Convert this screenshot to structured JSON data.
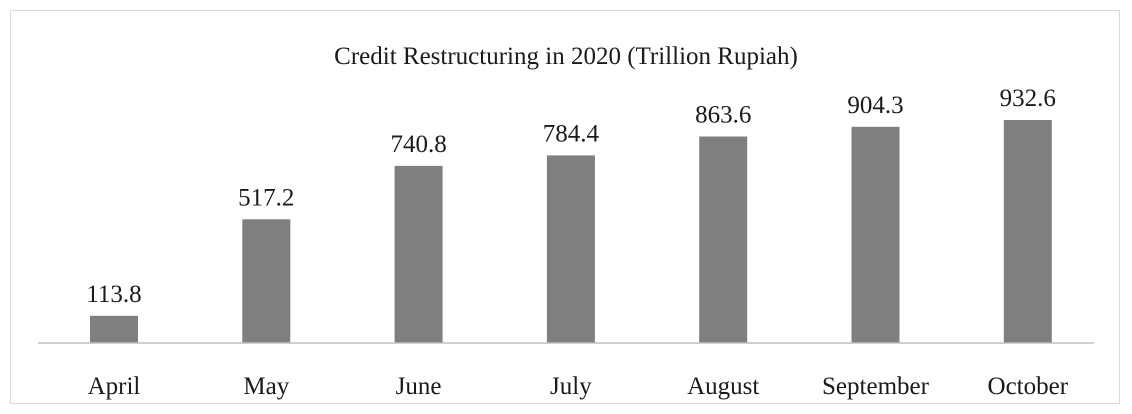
{
  "chart_data": {
    "type": "bar",
    "title": "Credit Restructuring in 2020 (Trillion Rupiah)",
    "xlabel": "",
    "ylabel": "",
    "categories": [
      "April",
      "May",
      "June",
      "July",
      "August",
      "September",
      "October"
    ],
    "values": [
      113.8,
      517.2,
      740.8,
      784.4,
      863.6,
      904.3,
      932.6
    ],
    "data_labels": [
      "113.8",
      "517.2",
      "740.8",
      "784.4",
      "863.6",
      "904.3",
      "932.6"
    ],
    "ylim": [
      0,
      1000
    ],
    "grid": false,
    "legend": "none",
    "bar_color": "#7f7f7f",
    "axis_color": "#bfbfbf"
  }
}
